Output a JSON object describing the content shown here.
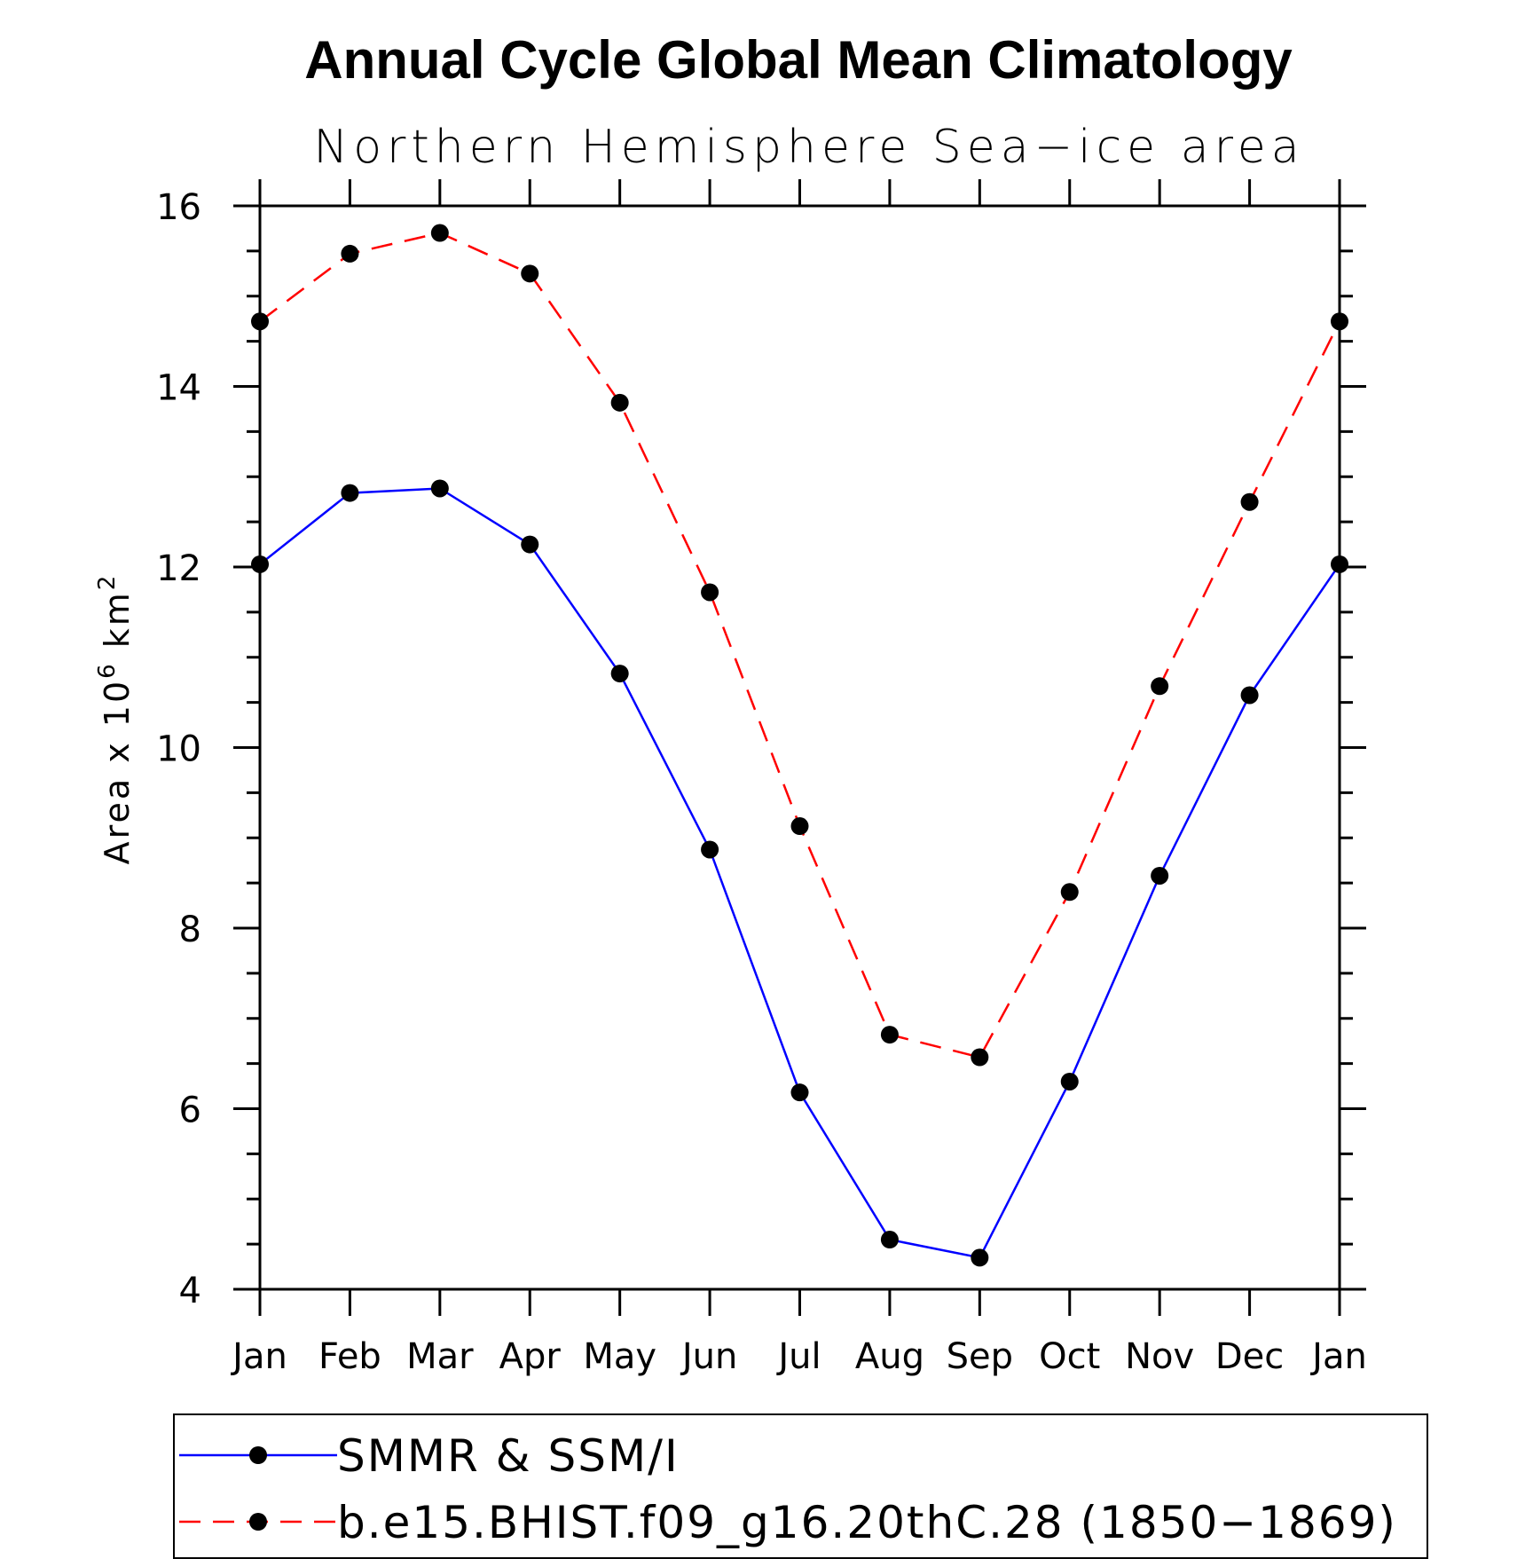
{
  "chart_data": {
    "type": "line",
    "title": "Annual Cycle Global Mean Climatology",
    "subtitle": "Northern Hemisphere Sea−ice area",
    "ylabel_parts": {
      "pre": "Area x 10",
      "exp": "6",
      "mid": " km",
      "exp2": "2"
    },
    "categories": [
      "Jan",
      "Feb",
      "Mar",
      "Apr",
      "May",
      "Jun",
      "Jul",
      "Aug",
      "Sep",
      "Oct",
      "Nov",
      "Dec",
      "Jan"
    ],
    "ylim": [
      4,
      16
    ],
    "yticks": [
      4,
      6,
      8,
      10,
      12,
      14,
      16
    ],
    "yminor_step": 0.5,
    "series": [
      {
        "name": "SMMR & SSM/I",
        "color": "#0000ff",
        "dash": "solid",
        "values": [
          12.03,
          12.82,
          12.87,
          12.25,
          10.82,
          8.87,
          6.18,
          4.55,
          4.35,
          6.3,
          8.58,
          10.58,
          12.03
        ]
      },
      {
        "name": "b.e15.BHIST.f09_g16.20thC.28 (1850−1869)",
        "color": "#ff0000",
        "dash": "dashed",
        "values": [
          14.72,
          15.47,
          15.7,
          15.25,
          13.82,
          11.72,
          9.13,
          6.82,
          6.57,
          8.4,
          10.68,
          12.72,
          14.72
        ]
      }
    ],
    "marker": "filled-circle",
    "marker_color": "#000000",
    "legend_placement": "bottom"
  }
}
